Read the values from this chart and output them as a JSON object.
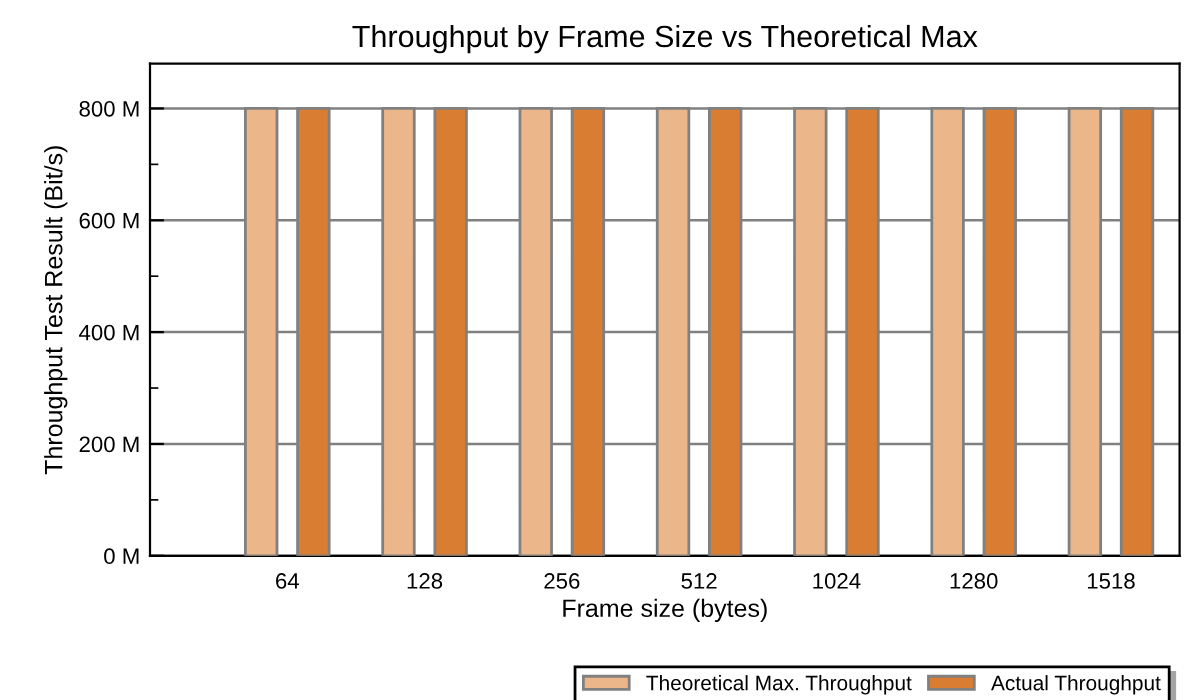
{
  "chart_data": {
    "type": "bar",
    "title": "Throughput by Frame Size vs Theoretical Max",
    "xlabel": "Frame size (bytes)",
    "ylabel": "Throughput Test Result (Bit/s)",
    "categories": [
      "64",
      "128",
      "256",
      "512",
      "1024",
      "1280",
      "1518"
    ],
    "series": [
      {
        "name": "Theoretical Max. Throughput",
        "color": "#ebb68a",
        "values": [
          800000000,
          800000000,
          800000000,
          800000000,
          800000000,
          800000000,
          800000000
        ]
      },
      {
        "name": "Actual Throughput",
        "color": "#d97d33",
        "values": [
          800000000,
          800000000,
          800000000,
          800000000,
          800000000,
          800000000,
          800000000
        ]
      }
    ],
    "ylim": [
      0,
      880000000
    ],
    "yticks": [
      {
        "value": 0,
        "label": "0 M"
      },
      {
        "value": 200000000,
        "label": "200 M"
      },
      {
        "value": 400000000,
        "label": "400 M"
      },
      {
        "value": 600000000,
        "label": "600 M"
      },
      {
        "value": 800000000,
        "label": "800 M"
      }
    ],
    "grid": "y",
    "legend": "bottom right"
  }
}
